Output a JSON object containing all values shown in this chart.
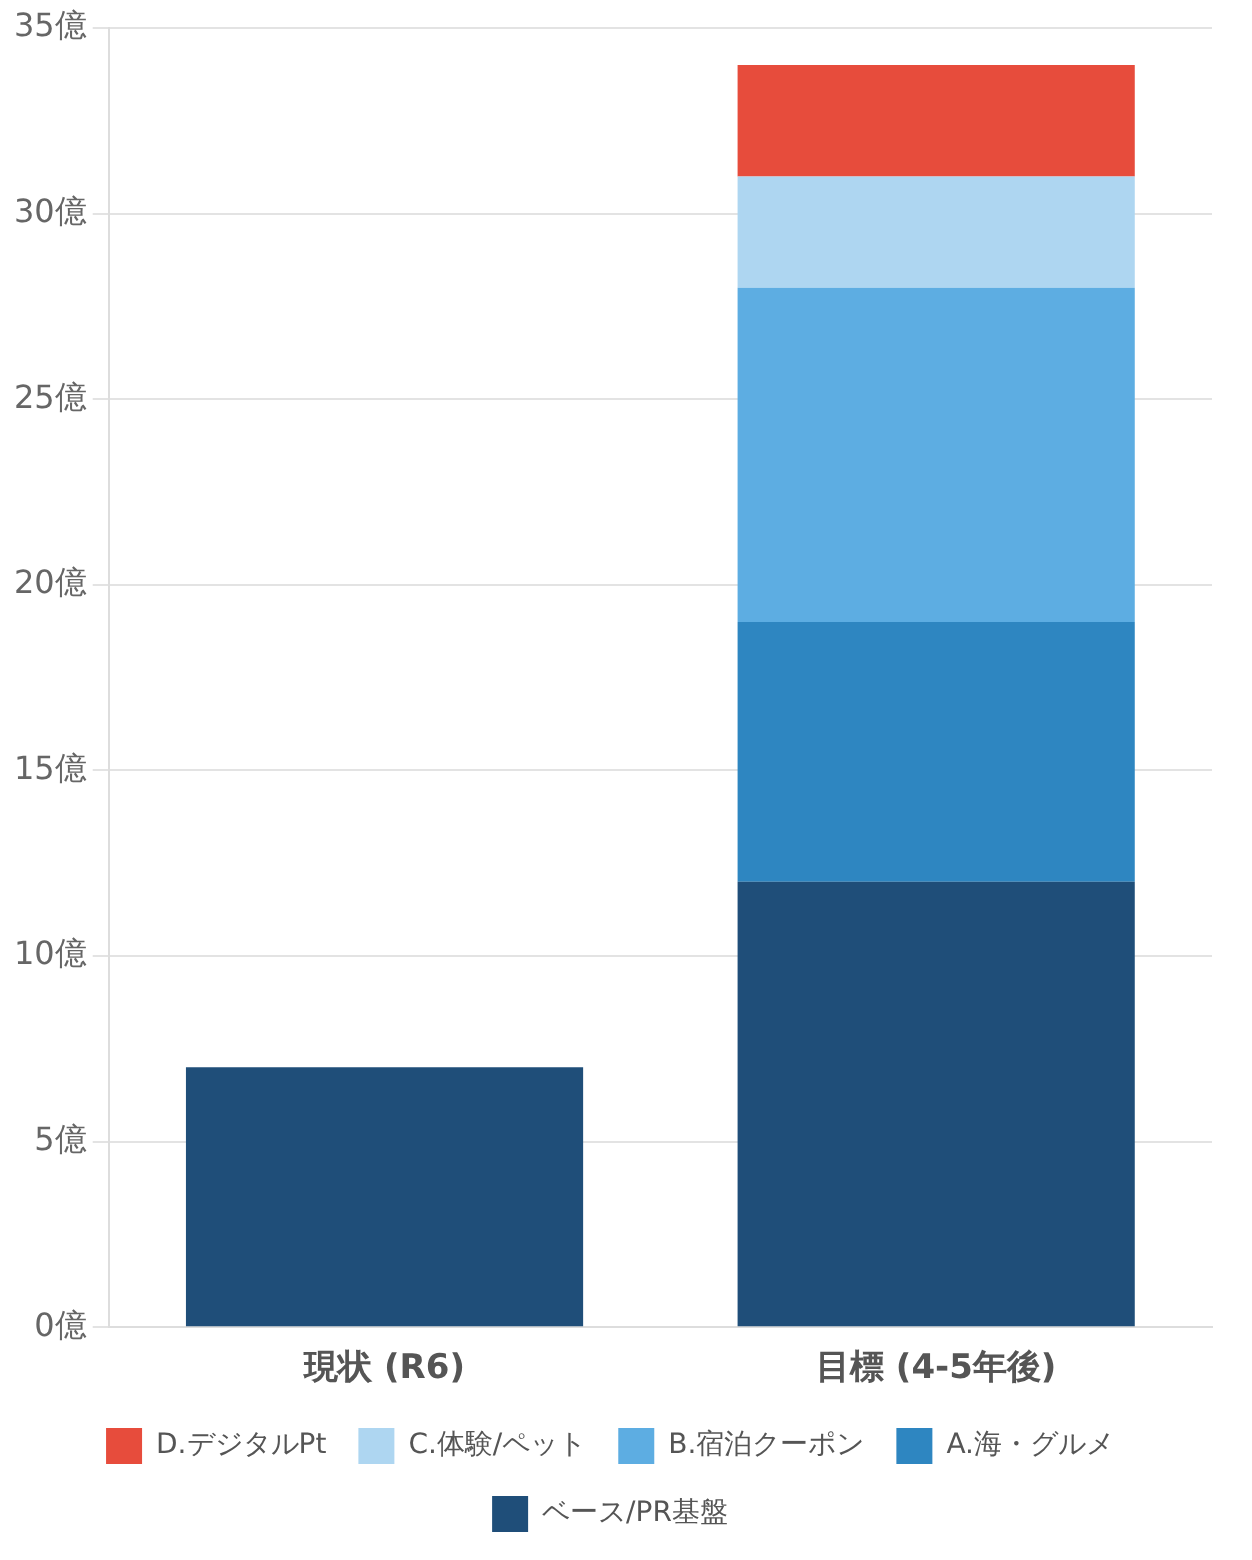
{
  "chart_data": {
    "type": "bar",
    "stacked": true,
    "categories": [
      "現状 (R6)",
      "目標 (4-5年後)"
    ],
    "series": [
      {
        "name": "ベース/PR基盤",
        "color": "#1f4e79",
        "values": [
          7,
          12
        ]
      },
      {
        "name": "A.海・グルメ",
        "color": "#2e86c1",
        "values": [
          null,
          7
        ]
      },
      {
        "name": "B.宿泊クーポン",
        "color": "#5dade2",
        "values": [
          null,
          9
        ]
      },
      {
        "name": "C.体験/ペット",
        "color": "#aed6f1",
        "values": [
          null,
          3
        ]
      },
      {
        "name": "D.デジタルPt",
        "color": "#e74c3c",
        "values": [
          null,
          3
        ]
      }
    ],
    "ylim": [
      0,
      35
    ],
    "yticks": [
      {
        "value": 0,
        "label": "0億"
      },
      {
        "value": 5,
        "label": "5億"
      },
      {
        "value": 10,
        "label": "10億"
      },
      {
        "value": 15,
        "label": "15億"
      },
      {
        "value": 20,
        "label": "20億"
      },
      {
        "value": 25,
        "label": "25億"
      },
      {
        "value": 30,
        "label": "30億"
      },
      {
        "value": 35,
        "label": "35億"
      }
    ],
    "grid": "y",
    "legend": "bottom"
  }
}
